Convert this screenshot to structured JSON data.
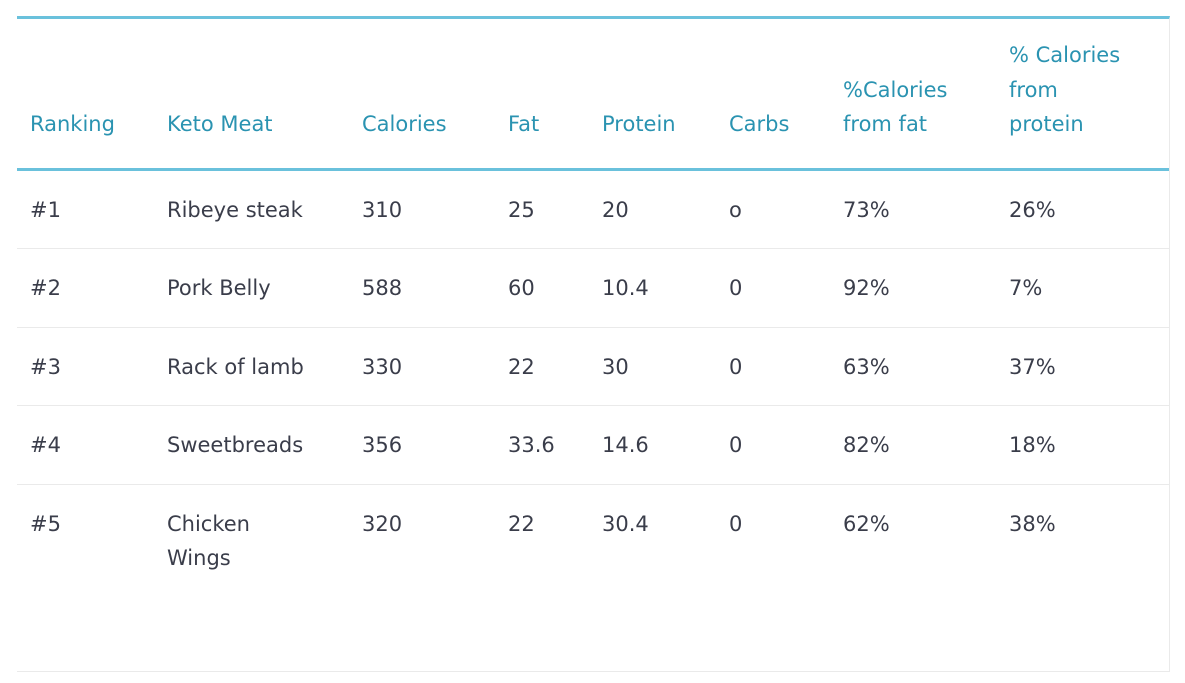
{
  "table": {
    "headers": [
      "Ranking",
      "Keto Meat",
      "Calories",
      "Fat",
      "Protein",
      "Carbs",
      "%Calories from fat",
      "% Calories from protein"
    ],
    "rows": [
      [
        "#1",
        "Ribeye steak",
        "310",
        "25",
        "20",
        "o",
        "73%",
        "26%"
      ],
      [
        "#2",
        "Pork Belly",
        "588",
        "60",
        "10.4",
        "0",
        "92%",
        "7%"
      ],
      [
        "#3",
        "Rack of lamb",
        "330",
        "22",
        "30",
        "0",
        "63%",
        "37%"
      ],
      [
        "#4",
        "Sweetbreads",
        "356",
        "33.6",
        "14.6",
        "0",
        "82%",
        "18%"
      ],
      [
        "#5",
        "Chicken Wings",
        "320",
        "22",
        "30.4",
        "0",
        "62%",
        "38%"
      ]
    ]
  },
  "colors": {
    "accent": "#6ac1dc",
    "header_text": "#2a93b1",
    "body_text": "#3a3d4a",
    "row_divider": "#eaeaea"
  }
}
